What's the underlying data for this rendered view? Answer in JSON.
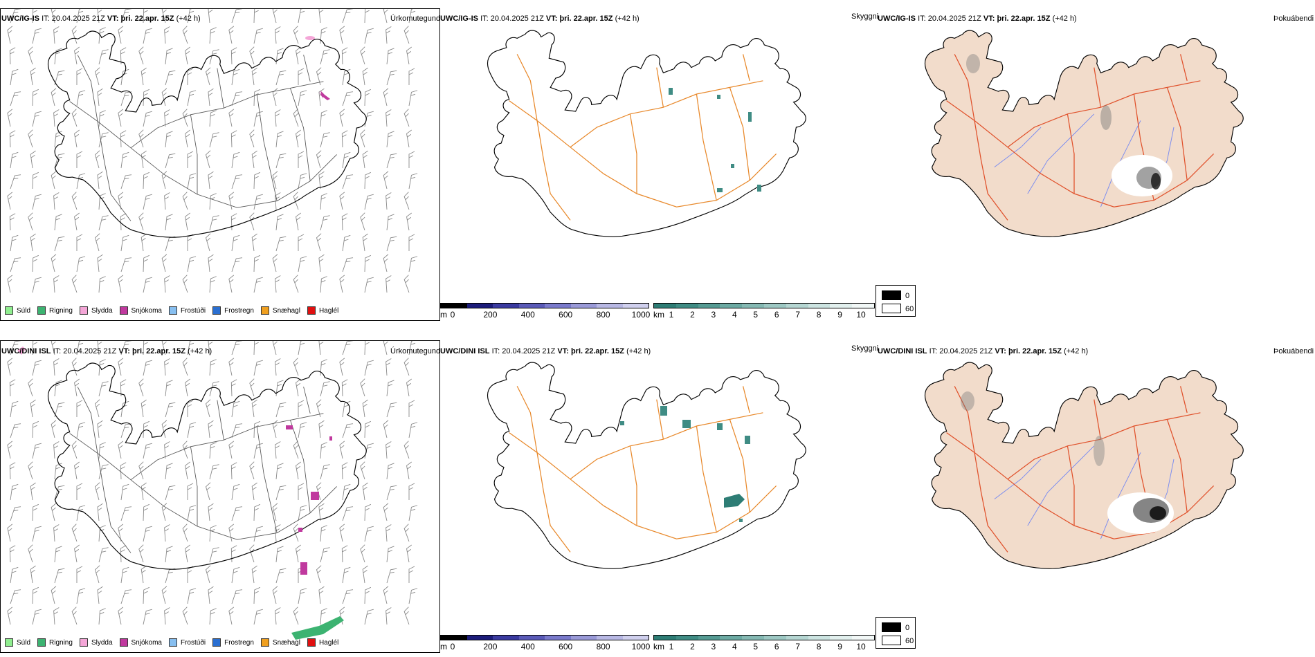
{
  "top": {
    "model": "UWC/IG-IS",
    "run_prefix": "IT:",
    "run": "20.04.2025 21Z",
    "valid_prefix": "VT:",
    "valid": "þri. 22.apr. 15Z",
    "lead": "(+42 h)"
  },
  "bottom": {
    "model": "UWC/DINI ISL",
    "run_prefix": "IT:",
    "run": "20.04.2025 21Z",
    "valid_prefix": "VT:",
    "valid": "þri. 22.apr. 15Z",
    "lead": "(+42 h)"
  },
  "panel_labels": {
    "precip": "Úrkomutegund",
    "visibility": "Skyggni",
    "fog": "Þokuábendi"
  },
  "precip_legend": [
    {
      "label": "Súld",
      "color": "#90ee90"
    },
    {
      "label": "Rigning",
      "color": "#3cb371"
    },
    {
      "label": "Slydda",
      "color": "#f4a6d7"
    },
    {
      "label": "Snjókoma",
      "color": "#c0399e"
    },
    {
      "label": "Frostúði",
      "color": "#87bff0"
    },
    {
      "label": "Frostregn",
      "color": "#2a6fd1"
    },
    {
      "label": "Snæhagl",
      "color": "#f0a020"
    },
    {
      "label": "Haglél",
      "color": "#e01010"
    }
  ],
  "height_scale": {
    "unit": "m",
    "ticks": [
      "0",
      "200",
      "400",
      "600",
      "800",
      "1000"
    ],
    "colors": [
      "#000000",
      "#1c1c7a",
      "#3a3aa0",
      "#5a5ab8",
      "#7a7acc",
      "#9a9ad8",
      "#b8b8e4",
      "#d0d0ee"
    ]
  },
  "visibility_scale": {
    "unit": "km",
    "ticks": [
      "1",
      "2",
      "3",
      "4",
      "5",
      "6",
      "7",
      "8",
      "9",
      "10"
    ],
    "colors": [
      "#2e7d75",
      "#3f8c84",
      "#559b93",
      "#6caaa3",
      "#85b9b3",
      "#9dc8c3",
      "#b5d6d2",
      "#cce4e1",
      "#e2f0ee",
      "#f2f8f7"
    ]
  },
  "fog_scale": {
    "ticks": [
      "0",
      "60"
    ],
    "colors": [
      "#000000",
      "#ffffff"
    ]
  },
  "colors": {
    "roads": "#e8882a",
    "roads_fog": "#e0502a",
    "land_fog": "#f2dccb",
    "rivers": "#7a8cf0",
    "coast": "#000000"
  }
}
